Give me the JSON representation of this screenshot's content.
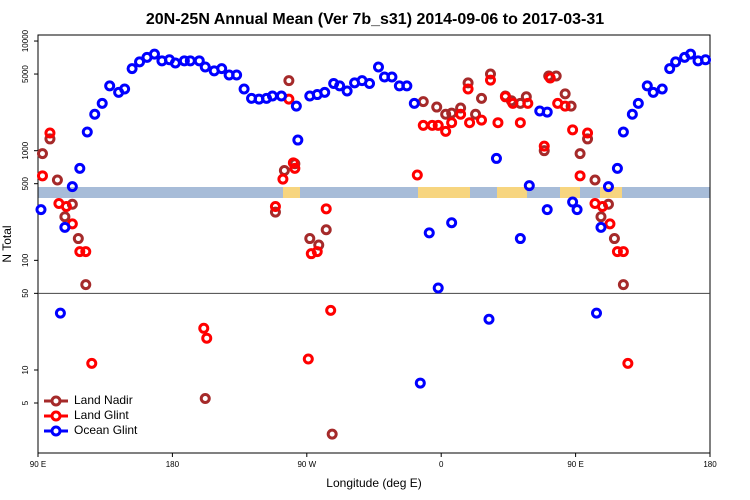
{
  "chart_data": {
    "type": "scatter",
    "title": "20N-25N Annual Mean (Ver 7b_s31)   2014-09-06 to 2017-03-31",
    "x_label": "Longitude (deg E)",
    "y_label": "N Total",
    "log_y": true,
    "legend": "bottom-left",
    "hline": 50,
    "xlim": [
      90,
      540
    ],
    "ylim": [
      1.75,
      11350
    ],
    "xticks": [
      {
        "value": 90,
        "label": "90 E"
      },
      180,
      {
        "value": 270,
        "label": "90 W"
      },
      {
        "value": 360,
        "label": "0"
      },
      {
        "value": 450,
        "label": "90 E"
      },
      {
        "value": 540,
        "label": "180"
      }
    ],
    "yticks": [
      5,
      10,
      50,
      100,
      500,
      1000,
      5000,
      10000
    ],
    "series": [
      {
        "name": "Land Nadir",
        "color": "#a52a2a",
        "x": [
          93,
          98,
          103,
          108,
          113,
          117,
          122,
          202,
          249,
          255,
          258,
          262,
          272,
          278,
          283,
          287,
          348,
          357,
          363,
          367,
          373,
          378,
          383,
          387,
          393,
          403,
          407,
          413,
          417,
          429,
          432,
          437,
          443,
          447,
          453,
          458,
          463,
          467,
          472,
          476,
          482
        ],
        "values": [
          940,
          1280,
          540,
          250,
          325,
          158,
          60,
          5.5,
          275,
          660,
          4350,
          760,
          158,
          138,
          190,
          2.6,
          2800,
          2500,
          2150,
          2200,
          2450,
          4150,
          2150,
          3000,
          5000,
          3150,
          2850,
          2700,
          3100,
          1000,
          4800,
          4800,
          3300,
          2550,
          940,
          1280,
          540,
          250,
          325,
          158,
          60
        ]
      },
      {
        "name": "Land Glint",
        "color": "#ff0000",
        "x": [
          93,
          98,
          104,
          109,
          113,
          118,
          122,
          126,
          201,
          203,
          249,
          254,
          258,
          261,
          262,
          271,
          273,
          277,
          283,
          286,
          344,
          348,
          354,
          358,
          363,
          367,
          373,
          378,
          379,
          387,
          393,
          398,
          403,
          408,
          413,
          418,
          429,
          433,
          438,
          443,
          448,
          453,
          458,
          463,
          468,
          473,
          478,
          482,
          485
        ],
        "values": [
          590,
          1450,
          330,
          310,
          215,
          120,
          120,
          11.5,
          24,
          19.5,
          310,
          550,
          2950,
          775,
          690,
          12.6,
          115,
          120,
          295,
          35,
          600,
          1700,
          1700,
          1700,
          1500,
          1800,
          2150,
          3650,
          1800,
          1900,
          4400,
          1800,
          3100,
          2700,
          1800,
          2700,
          1100,
          4600,
          2700,
          2550,
          1550,
          590,
          1450,
          330,
          310,
          215,
          120,
          120,
          11.5
        ]
      },
      {
        "name": "Ocean Glint",
        "color": "#0000ff",
        "x": [
          92,
          105,
          108,
          113,
          118,
          123,
          128,
          133,
          138,
          144,
          148,
          153,
          158,
          163,
          168,
          173,
          178,
          182,
          188,
          192,
          198,
          202,
          208,
          213,
          218,
          223,
          228,
          233,
          238,
          243,
          247,
          253,
          263,
          264,
          272,
          277,
          282,
          288,
          292,
          297,
          302,
          307,
          312,
          318,
          322,
          327,
          332,
          337,
          342,
          346,
          352,
          358,
          367,
          392,
          397,
          413,
          419,
          426,
          431,
          431,
          448,
          451,
          464,
          467,
          472,
          478,
          482,
          488,
          492,
          498,
          502,
          508,
          513,
          517,
          523,
          527,
          532,
          537
        ],
        "values": [
          290,
          33,
          200,
          470,
          690,
          1480,
          2150,
          2700,
          3900,
          3400,
          3650,
          5600,
          6450,
          7100,
          7600,
          6600,
          6750,
          6300,
          6600,
          6600,
          6600,
          5800,
          5350,
          5600,
          4900,
          4900,
          3650,
          3000,
          2950,
          3000,
          3150,
          3150,
          2550,
          1250,
          3150,
          3250,
          3400,
          4100,
          3900,
          3500,
          4150,
          4350,
          4100,
          5800,
          4700,
          4700,
          3900,
          3900,
          2700,
          7.6,
          178,
          56,
          220,
          29,
          850,
          158,
          480,
          2300,
          2250,
          290,
          340,
          290,
          33,
          200,
          470,
          690,
          1480,
          2150,
          2700,
          3900,
          3400,
          3650,
          5600,
          6450,
          7100,
          7600,
          6600,
          6750
        ]
      }
    ]
  }
}
